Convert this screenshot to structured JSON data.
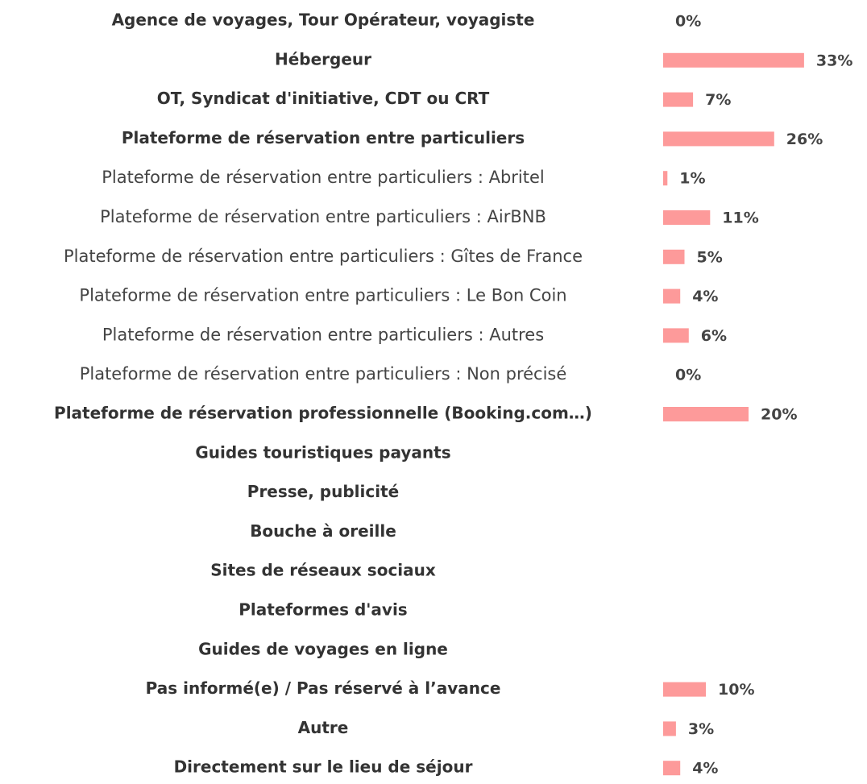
{
  "chart_data": {
    "type": "bar",
    "orientation": "horizontal",
    "color": "#fd9a9a",
    "categories": [
      "Agence de voyages, Tour Opérateur, voyagiste",
      "Hébergeur",
      "OT, Syndicat d'initiative, CDT ou CRT",
      "Plateforme de réservation entre particuliers",
      "Plateforme de réservation entre particuliers : Abritel",
      "Plateforme de réservation entre particuliers : AirBNB",
      "Plateforme de réservation entre particuliers : Gîtes de France",
      "Plateforme de réservation entre particuliers : Le Bon Coin",
      "Plateforme de réservation entre particuliers : Autres",
      "Plateforme de réservation entre particuliers : Non précisé",
      "Plateforme de réservation professionnelle (Booking.com…)",
      "Guides touristiques payants",
      "Presse, publicité",
      "Bouche à oreille",
      "Sites de réseaux sociaux",
      "Plateformes d'avis",
      "Guides de voyages en ligne",
      "Pas informé(e) / Pas réservé à l’avance",
      "Autre",
      "Directement sur le lieu de séjour"
    ],
    "values": [
      0,
      33,
      7,
      26,
      1,
      11,
      5,
      4,
      6,
      0,
      20,
      null,
      null,
      null,
      null,
      null,
      null,
      10,
      3,
      4
    ],
    "value_labels": [
      "0%",
      "33%",
      "7%",
      "26%",
      "1%",
      "11%",
      "5%",
      "4%",
      "6%",
      "0%",
      "20%",
      null,
      null,
      null,
      null,
      null,
      null,
      "10%",
      "3%",
      "4%"
    ]
  }
}
